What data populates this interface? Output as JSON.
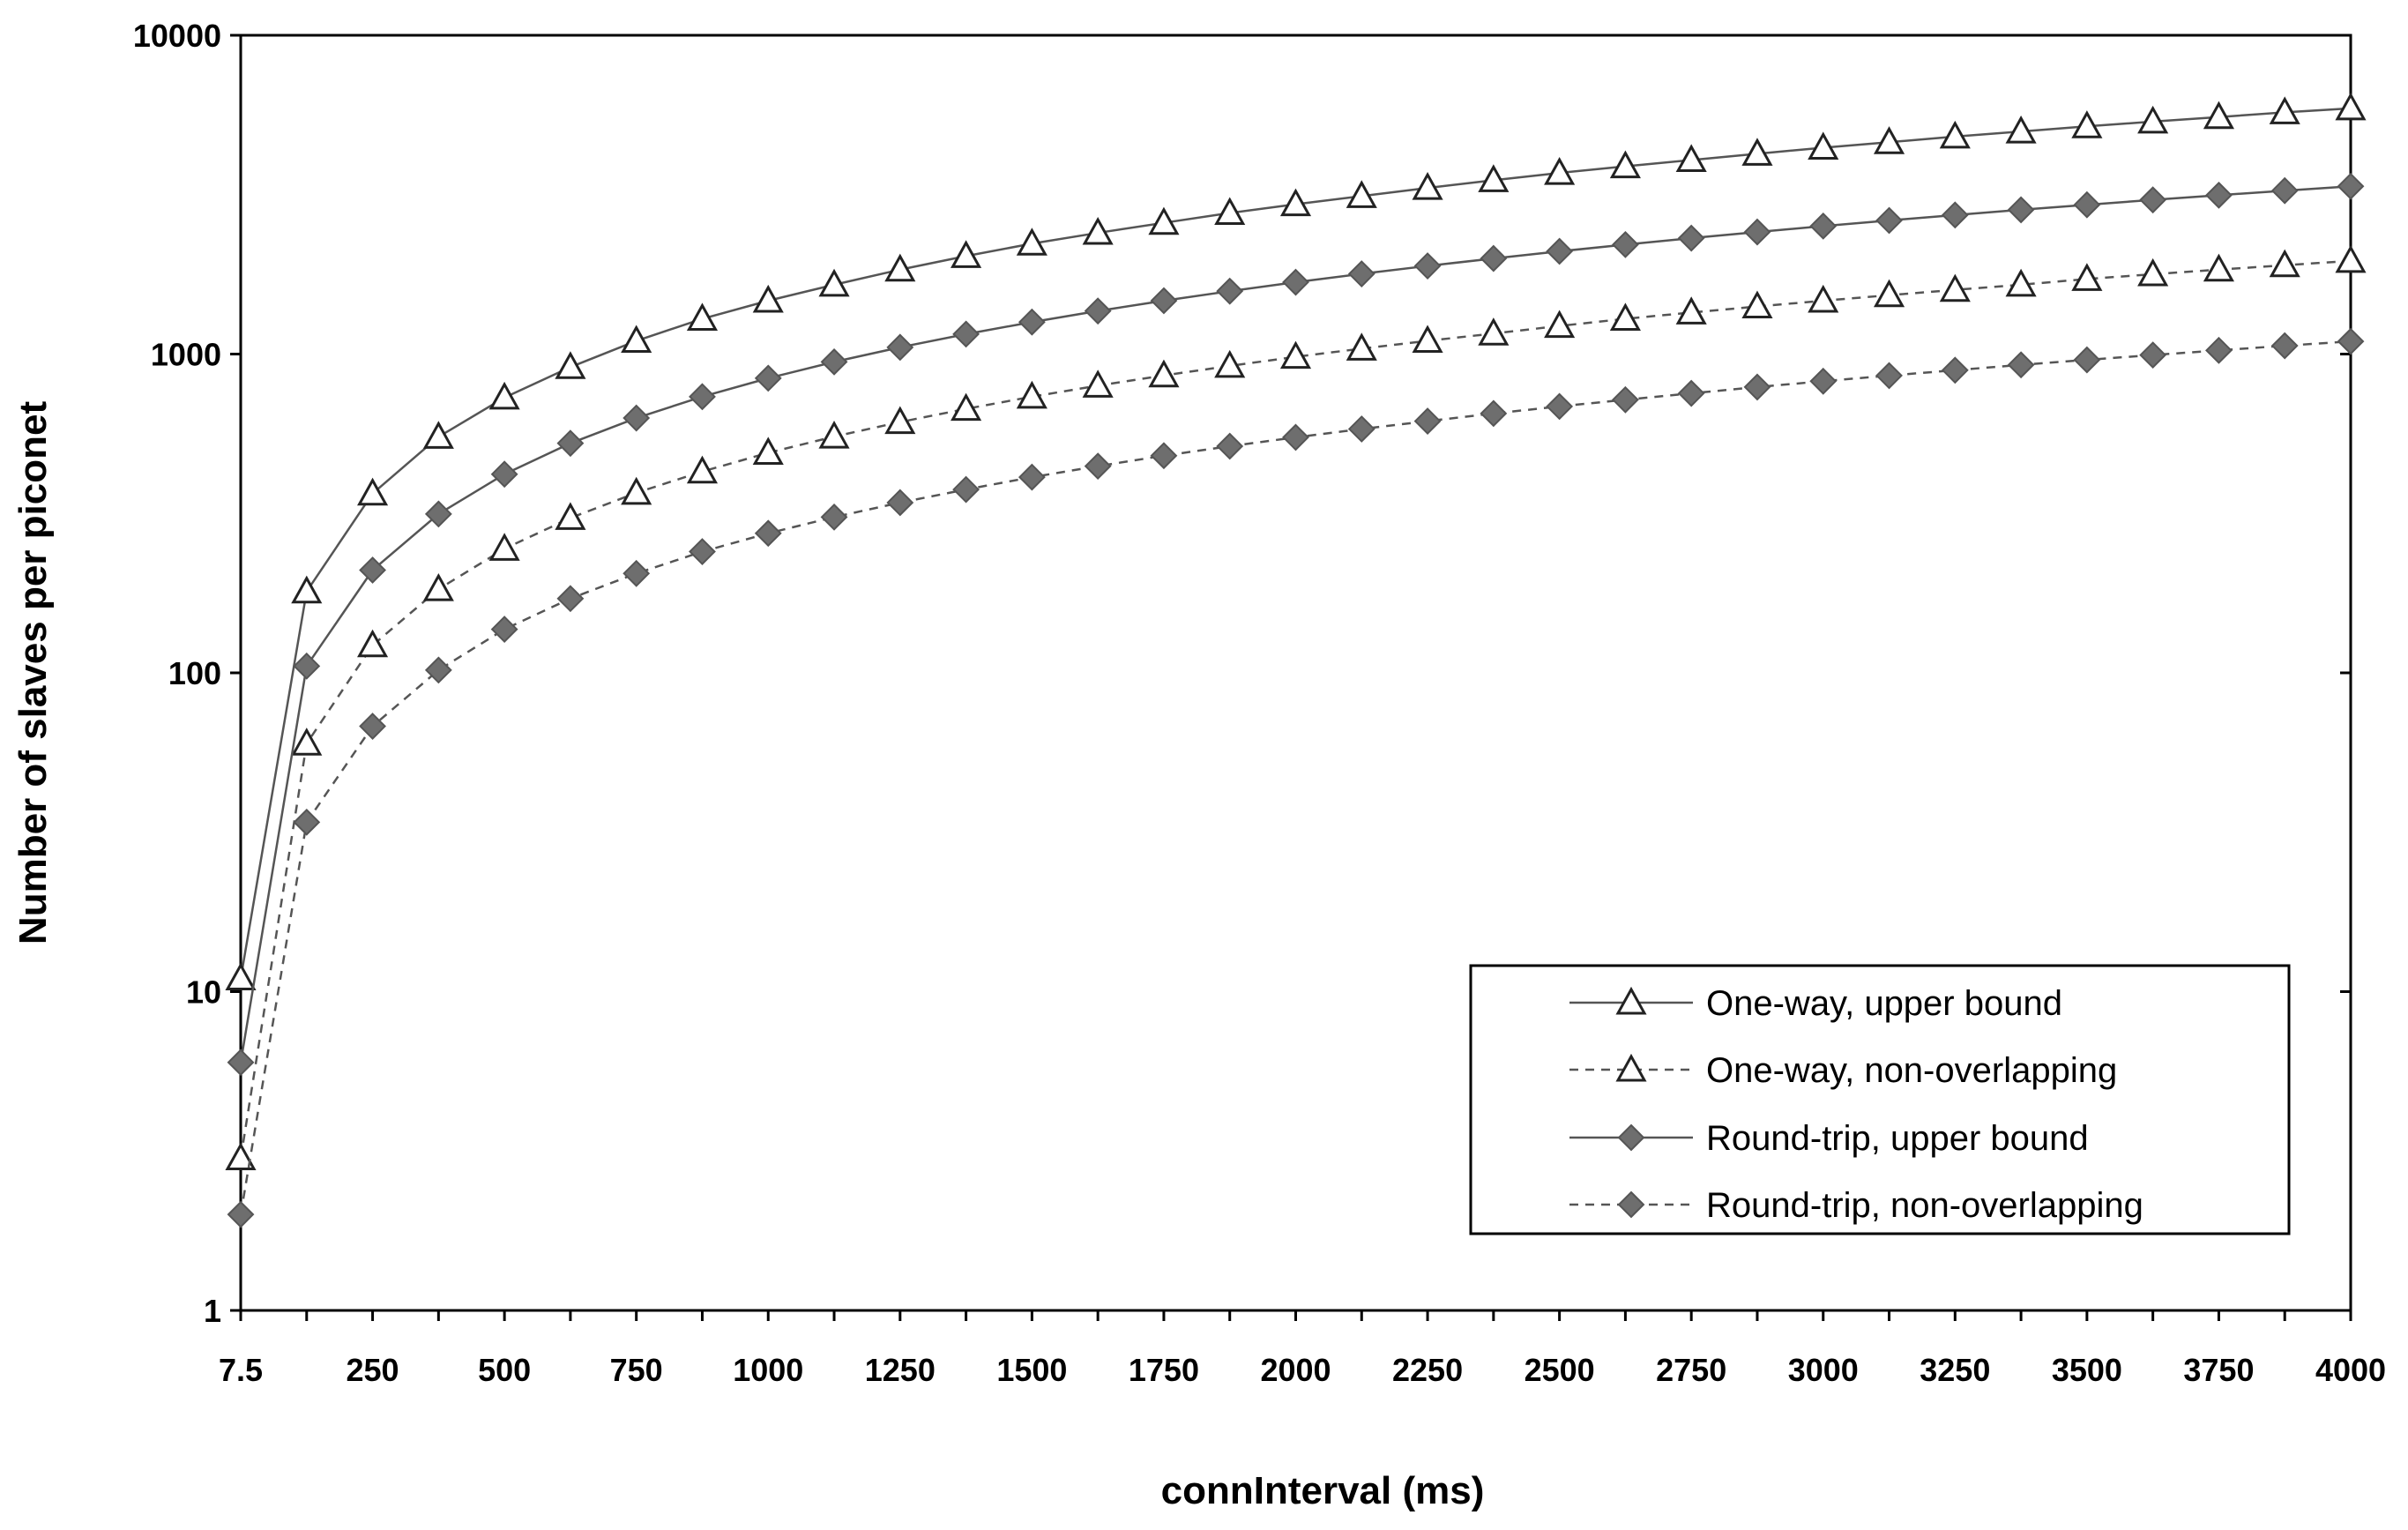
{
  "chart_data": {
    "type": "line",
    "title": "",
    "xlabel": "connInterval (ms)",
    "ylabel": "Number of slaves  per piconet",
    "yscale": "log",
    "ylim": [
      1,
      10000
    ],
    "y_ticks": [
      1,
      10,
      100,
      1000,
      10000
    ],
    "y_tick_labels": [
      "1",
      "10",
      "100",
      "1000",
      "10000"
    ],
    "x_categories": [
      "7.5",
      "125",
      "250",
      "375",
      "500",
      "625",
      "750",
      "875",
      "1000",
      "1125",
      "1250",
      "1375",
      "1500",
      "1625",
      "1750",
      "1875",
      "2000",
      "2125",
      "2250",
      "2375",
      "2500",
      "2625",
      "2750",
      "2875",
      "3000",
      "3125",
      "3250",
      "3375",
      "3500",
      "3625",
      "3750",
      "3875",
      "4000"
    ],
    "x_tick_labels": [
      "7.5",
      "",
      "250",
      "",
      "500",
      "",
      "750",
      "",
      "1000",
      "",
      "1250",
      "",
      "1500",
      "",
      "1750",
      "",
      "2000",
      "",
      "2250",
      "",
      "2500",
      "",
      "2750",
      "",
      "3000",
      "",
      "3250",
      "",
      "3500",
      "",
      "3750",
      "",
      "4000"
    ],
    "grid": false,
    "legend_position": "bottom-right",
    "series": [
      {
        "name": "One-way, upper bound",
        "line": "solid",
        "marker": "triangle-open",
        "values": [
          11,
          180,
          365,
          550,
          730,
          910,
          1100,
          1290,
          1470,
          1650,
          1840,
          2030,
          2220,
          2400,
          2580,
          2770,
          2950,
          3130,
          3320,
          3510,
          3700,
          3880,
          4060,
          4250,
          4440,
          4620,
          4810,
          4990,
          5180,
          5360,
          5540,
          5730,
          5900
        ]
      },
      {
        "name": "One-way, non-overlapping",
        "line": "dashed",
        "marker": "triangle-open",
        "values": [
          3,
          60,
          122,
          183,
          245,
          306,
          367,
          428,
          490,
          551,
          612,
          673,
          735,
          796,
          857,
          918,
          980,
          1040,
          1100,
          1160,
          1225,
          1290,
          1350,
          1410,
          1470,
          1530,
          1590,
          1650,
          1720,
          1780,
          1840,
          1900,
          1960
        ]
      },
      {
        "name": "Round-trip, upper bound",
        "line": "solid",
        "marker": "diamond-filled",
        "values": [
          6,
          105,
          210,
          315,
          420,
          525,
          630,
          735,
          840,
          945,
          1050,
          1155,
          1260,
          1365,
          1470,
          1575,
          1680,
          1785,
          1890,
          1995,
          2100,
          2205,
          2310,
          2415,
          2520,
          2625,
          2730,
          2835,
          2940,
          3045,
          3150,
          3255,
          3360
        ]
      },
      {
        "name": "Round-trip, non-overlapping",
        "line": "dashed",
        "marker": "diamond-filled",
        "values": [
          2,
          34,
          68,
          102,
          137,
          171,
          205,
          240,
          274,
          308,
          342,
          376,
          411,
          445,
          480,
          514,
          548,
          582,
          616,
          651,
          685,
          719,
          753,
          788,
          822,
          856,
          890,
          925,
          959,
          993,
          1027,
          1062,
          1096
        ]
      }
    ]
  }
}
